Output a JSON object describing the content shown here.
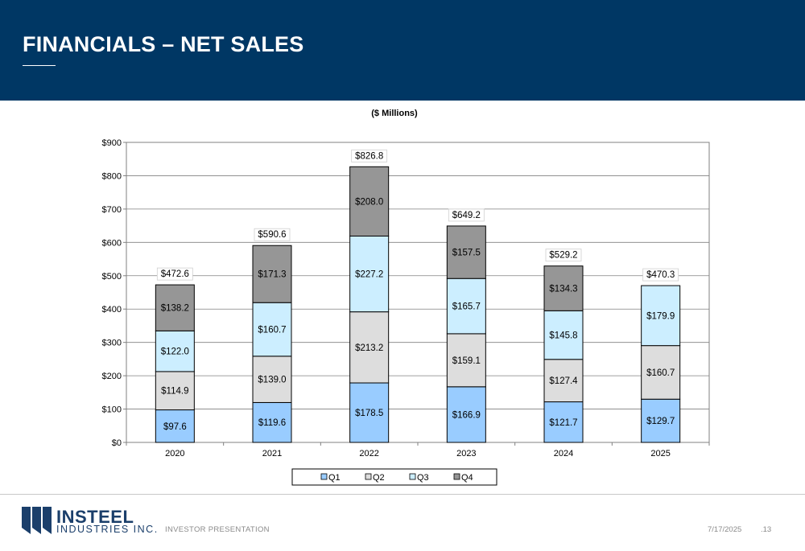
{
  "header": {
    "title": "FINANCIALS – NET SALES"
  },
  "colors": {
    "header_bg": "#003764",
    "Q1": "#99ccff",
    "Q2": "#dddddd",
    "Q3": "#cceeff",
    "Q4": "#969696"
  },
  "chart_data": {
    "type": "bar",
    "stacked": true,
    "title": "($ Millions)",
    "categories": [
      "2020",
      "2021",
      "2022",
      "2023",
      "2024",
      "2025"
    ],
    "series": [
      {
        "name": "Q1",
        "values": [
          97.6,
          119.6,
          178.5,
          166.9,
          121.7,
          129.7
        ]
      },
      {
        "name": "Q2",
        "values": [
          114.9,
          139.0,
          213.2,
          159.1,
          127.4,
          160.7
        ]
      },
      {
        "name": "Q3",
        "values": [
          122.0,
          160.7,
          227.2,
          165.7,
          145.8,
          179.9
        ]
      },
      {
        "name": "Q4",
        "values": [
          138.2,
          171.3,
          208.0,
          157.5,
          134.3,
          null
        ]
      }
    ],
    "segment_labels": [
      [
        "$97.6",
        "$119.6",
        "$178.5",
        "$166.9",
        "$121.7",
        "$129.7"
      ],
      [
        "$114.9",
        "$139.0",
        "$213.2",
        "$159.1",
        "$127.4",
        "$160.7"
      ],
      [
        "$122.0",
        "$160.7",
        "$227.2",
        "$165.7",
        "$145.8",
        "$179.9"
      ],
      [
        "$138.2",
        "$171.3",
        "$208.0",
        "$157.5",
        "$134.3",
        ""
      ]
    ],
    "totals": [
      472.6,
      590.6,
      826.8,
      649.2,
      529.2,
      470.3
    ],
    "total_labels": [
      "$472.6",
      "$590.6",
      "$826.8",
      "$649.2",
      "$529.2",
      "$470.3"
    ],
    "ylim": [
      0,
      900
    ],
    "yticks": [
      0,
      100,
      200,
      300,
      400,
      500,
      600,
      700,
      800,
      900
    ],
    "ytick_labels": [
      "$0",
      "$100",
      "$200",
      "$300",
      "$400",
      "$500",
      "$600",
      "$700",
      "$800",
      "$900"
    ],
    "grid": true,
    "legend": "bottom"
  },
  "footer": {
    "brand_name": "INSTEEL",
    "brand_sub": "INDUSTRIES INC.",
    "section": "INVESTOR PRESENTATION",
    "date": "7/17/2025",
    "page": ".13"
  }
}
